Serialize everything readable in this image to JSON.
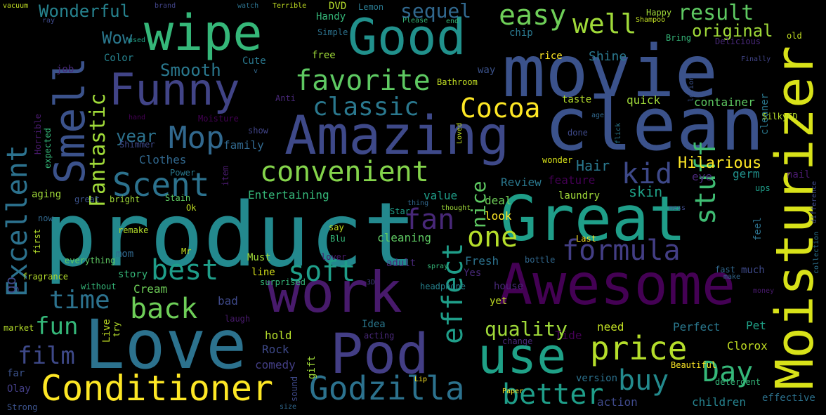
{
  "words": [
    "product",
    "movie",
    "clean",
    "Moisturizer",
    "Great",
    "Love",
    "Awesome",
    "work",
    "Pod",
    "Amazing",
    "wipe",
    "use",
    "Good",
    "Funny",
    "Smell",
    "Conditioner",
    "Godzilla",
    "price",
    "Excellent",
    "formula",
    "best",
    "back",
    "soft",
    "Day",
    "buy",
    "effect",
    "better",
    "favorite",
    "convenient",
    "Scent",
    "classic",
    "easy",
    "Mop",
    "kid",
    "stuff",
    "time",
    "one",
    "fan",
    "fun",
    "film",
    "Cocoa",
    "well",
    "quality",
    "Hilarious",
    "result",
    "original",
    "Wonderful",
    "sequel",
    "Fantastic",
    "year",
    "Smooth",
    "Hair",
    "nice",
    "skin",
    "Wow",
    "Clothes",
    "Entertaining",
    "family",
    "Shine",
    "container",
    "quick",
    "Clorox",
    "Perfect",
    "Pet",
    "need",
    "children",
    "action",
    "version",
    "Rock",
    "comedy",
    "hold",
    "Cream",
    "story",
    "mom",
    "line",
    "Must",
    "cleaning",
    "Fresh",
    "bad",
    "laundry",
    "feature",
    "germ",
    "eye",
    "look",
    "deal",
    "value",
    "Review",
    "aging",
    "go",
    "Tide",
    "effective",
    "Color",
    "Cute",
    "free",
    "Handy",
    "Simple",
    "DVD",
    "Lemon",
    "brand",
    "watch",
    "Terrible",
    "vacuum",
    "ray",
    "used",
    "job",
    "Horrible",
    "expected",
    "Anti",
    "Bathroom",
    "rice",
    "chip",
    "taste",
    "done",
    "cleaner",
    "much",
    "feel",
    "fast",
    "make",
    "money",
    "detergent",
    "Beautiful",
    "Paper",
    "Lip",
    "Olay",
    "Strong",
    "far",
    "market",
    "fragrance",
    "without",
    "everything",
    "first",
    "now",
    "remake",
    "Ok",
    "Stain",
    "Power",
    "great",
    "bright",
    "Star",
    "thing",
    "say",
    "Blu",
    "adult",
    "Yes",
    "headphone",
    "3D",
    "lover",
    "surprised",
    "Live",
    "try",
    "laugh",
    "Idea",
    "acting",
    "gift",
    "sound",
    "size",
    "change",
    "yet",
    "house",
    "bottle",
    "Last",
    "Mr",
    "spray",
    "thought",
    "Loved",
    "flick",
    "lotion",
    "age",
    "wonder",
    "mess",
    "ups",
    "collection",
    "difference",
    "nail",
    "SilkyCD",
    "Delicious",
    "Bring",
    "Happy",
    "Shampoo",
    "Finally",
    "old",
    "end",
    "Please",
    "Moisture",
    "hand",
    "Shimmer",
    "show",
    "item",
    "way",
    "v"
  ]
}
